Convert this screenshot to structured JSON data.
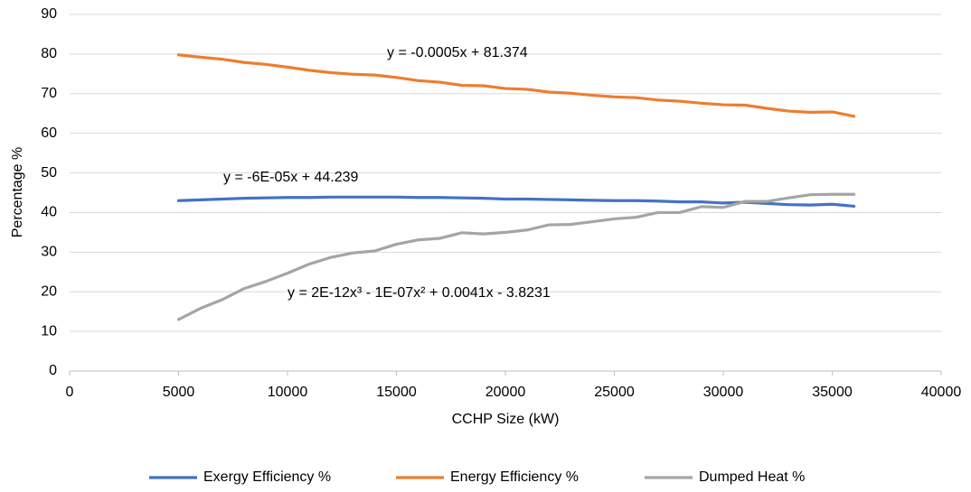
{
  "chart_data": {
    "type": "line",
    "x_label": "CCHP Size (kW)",
    "y_label": "Percentage %",
    "x": [
      5000,
      6000,
      7000,
      8000,
      9000,
      10000,
      11000,
      12000,
      13000,
      14000,
      15000,
      16000,
      17000,
      18000,
      19000,
      20000,
      21000,
      22000,
      23000,
      24000,
      25000,
      26000,
      27000,
      28000,
      29000,
      30000,
      31000,
      32000,
      33000,
      34000,
      35000,
      36000
    ],
    "series": [
      {
        "name": "Exergy Efficiency %",
        "color": "#4472c4",
        "values": [
          43.0,
          43.2,
          43.4,
          43.6,
          43.7,
          43.8,
          43.8,
          43.9,
          43.9,
          43.9,
          43.9,
          43.8,
          43.8,
          43.7,
          43.6,
          43.4,
          43.4,
          43.3,
          43.2,
          43.1,
          43.0,
          43.0,
          42.9,
          42.7,
          42.7,
          42.4,
          42.6,
          42.3,
          42.0,
          41.9,
          42.1,
          41.6
        ]
      },
      {
        "name": "Energy Efficiency %",
        "color": "#ed7d31",
        "values": [
          79.8,
          79.2,
          78.7,
          77.9,
          77.4,
          76.7,
          75.9,
          75.3,
          74.9,
          74.7,
          74.1,
          73.3,
          72.9,
          72.1,
          72.0,
          71.3,
          71.1,
          70.4,
          70.1,
          69.6,
          69.2,
          69.0,
          68.4,
          68.1,
          67.6,
          67.2,
          67.1,
          66.3,
          65.6,
          65.3,
          65.4,
          64.3
        ]
      },
      {
        "name": "Dumped Heat %",
        "color": "#a5a5a5",
        "values": [
          13.0,
          15.8,
          18.0,
          20.8,
          22.6,
          24.7,
          27.0,
          28.7,
          29.8,
          30.3,
          32.0,
          33.1,
          33.5,
          34.9,
          34.6,
          35.0,
          35.6,
          36.9,
          37.0,
          37.7,
          38.4,
          38.8,
          40.0,
          40.0,
          41.5,
          41.3,
          42.8,
          42.8,
          43.7,
          44.5,
          44.6,
          44.6
        ]
      }
    ],
    "annotations": [
      "y = -0.0005x + 81.374",
      "y = -6E-05x + 44.239",
      "y = 2E-12x³ - 1E-07x² + 0.0041x - 3.8231"
    ],
    "xlim": [
      0,
      40000
    ],
    "xticks": [
      0,
      5000,
      10000,
      15000,
      20000,
      25000,
      30000,
      35000,
      40000
    ],
    "ylim": [
      0,
      90
    ],
    "yticks": [
      0,
      10,
      20,
      30,
      40,
      50,
      60,
      70,
      80,
      90
    ],
    "grid": true,
    "legend": "bottom"
  }
}
